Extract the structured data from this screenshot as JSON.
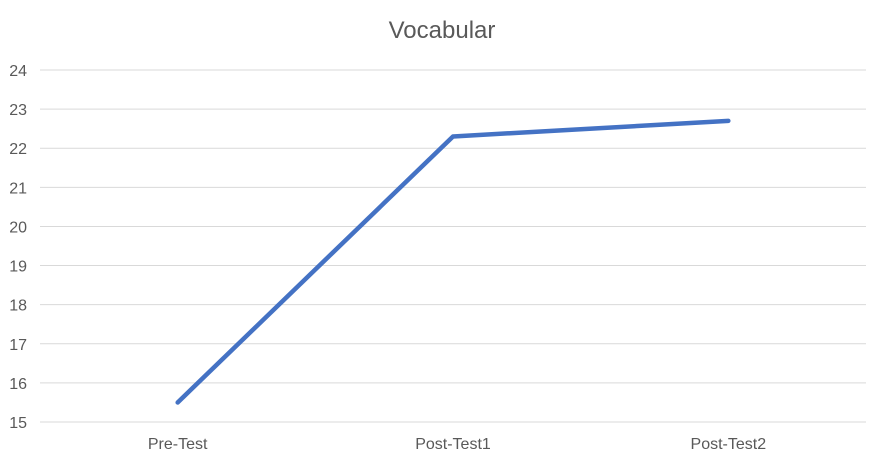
{
  "chart_data": {
    "type": "line",
    "title": "Vocabular",
    "categories": [
      "Pre-Test",
      "Post-Test1",
      "Post-Test2"
    ],
    "series": [
      {
        "values": [
          15.5,
          22.3,
          22.7
        ],
        "color": "#4472C4"
      }
    ],
    "ylim": [
      15,
      24
    ],
    "yticks": [
      15,
      16,
      17,
      18,
      19,
      20,
      21,
      22,
      23,
      24
    ],
    "xlabel": "",
    "ylabel": "",
    "grid": true,
    "gridline_color": "#D9D9D9"
  }
}
